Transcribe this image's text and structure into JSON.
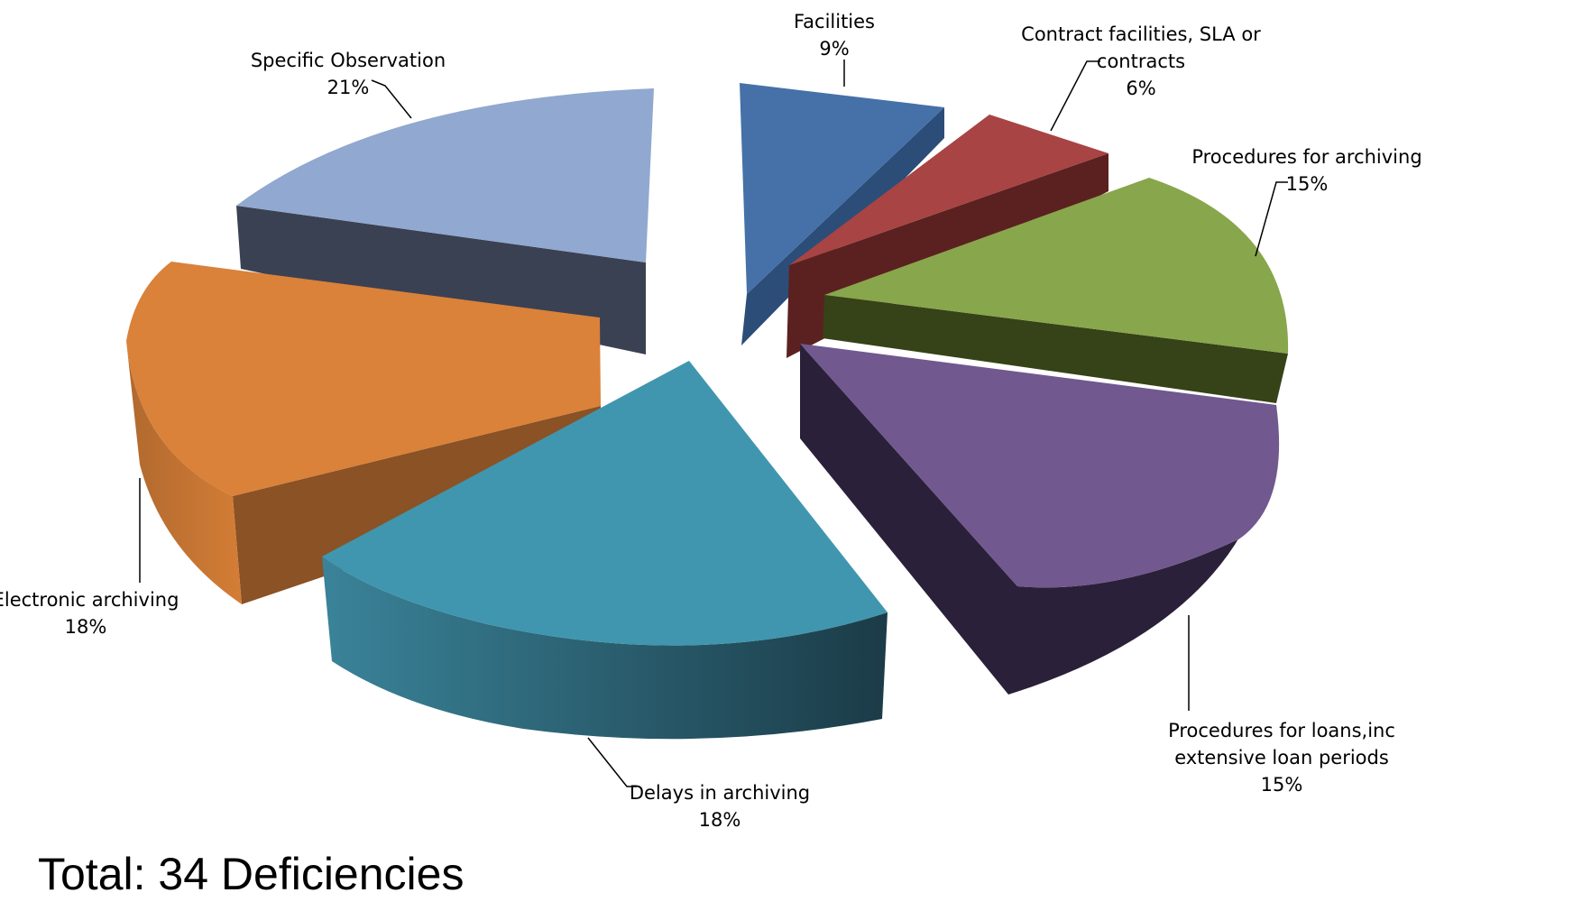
{
  "chart_data": {
    "type": "pie",
    "title": "",
    "style": "3d-exploded",
    "categories": [
      "Facilities",
      "Contract facilities, SLA or contracts",
      "Procedures for archiving",
      "Procedures for loans,inc extensive loan periods",
      "Delays in archiving",
      "Electronic archiving",
      "Specific Observation"
    ],
    "values": [
      9,
      6,
      15,
      15,
      18,
      18,
      21
    ],
    "value_labels": [
      "9%",
      "6%",
      "15%",
      "15%",
      "18%",
      "18%",
      "21%"
    ],
    "label_lines": [
      [
        "Facilities"
      ],
      [
        "Contract facilities, SLA or",
        "contracts"
      ],
      [
        "Procedures for archiving"
      ],
      [
        "Procedures for loans,inc",
        "extensive loan periods"
      ],
      [
        "Delays in archiving"
      ],
      [
        "Electronic archiving"
      ],
      [
        "Specific Observation"
      ]
    ],
    "colors": [
      "#4571A8",
      "#A84443",
      "#88A64C",
      "#71588F",
      "#4096AE",
      "#DA813A",
      "#91A8D0"
    ],
    "side_colors": [
      "#2C4D78",
      "#5B2120",
      "#364217",
      "#2B2039",
      "#2A6E80",
      "#8A5225",
      "#3A4152"
    ],
    "legend": "none"
  },
  "annotation": {
    "total_text": "Total: 34 Deficiencies"
  }
}
